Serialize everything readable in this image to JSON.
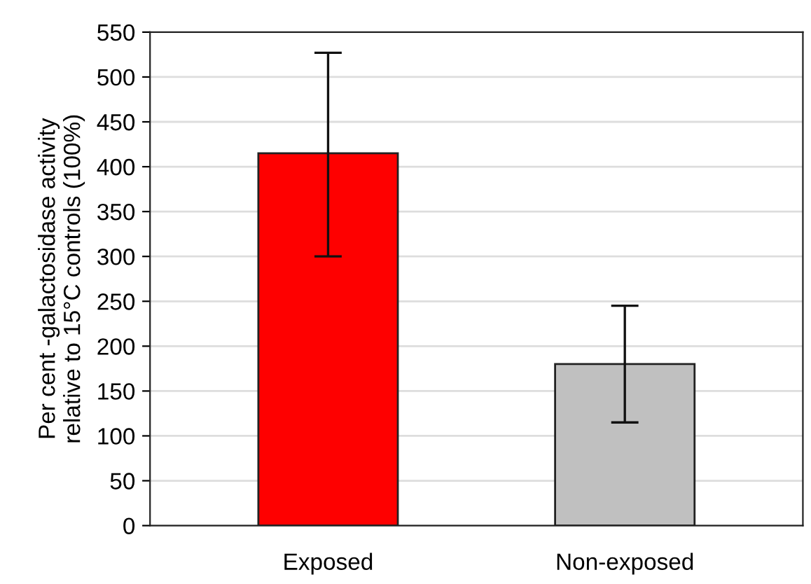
{
  "chart_data": {
    "type": "bar",
    "ylabel": "Per cent -galactosidase activity\nrelative to 15°C controls (100%)",
    "categories": [
      "Exposed",
      "Non-exposed"
    ],
    "values": [
      415,
      180
    ],
    "colors": [
      "#fe0000",
      "#c0c0c0"
    ],
    "errors": [
      [
        300,
        527
      ],
      [
        115,
        245
      ]
    ],
    "ylim": [
      0,
      550
    ],
    "yticks": [
      0,
      50,
      100,
      150,
      200,
      250,
      300,
      350,
      400,
      450,
      500,
      550
    ],
    "grid": "y"
  }
}
